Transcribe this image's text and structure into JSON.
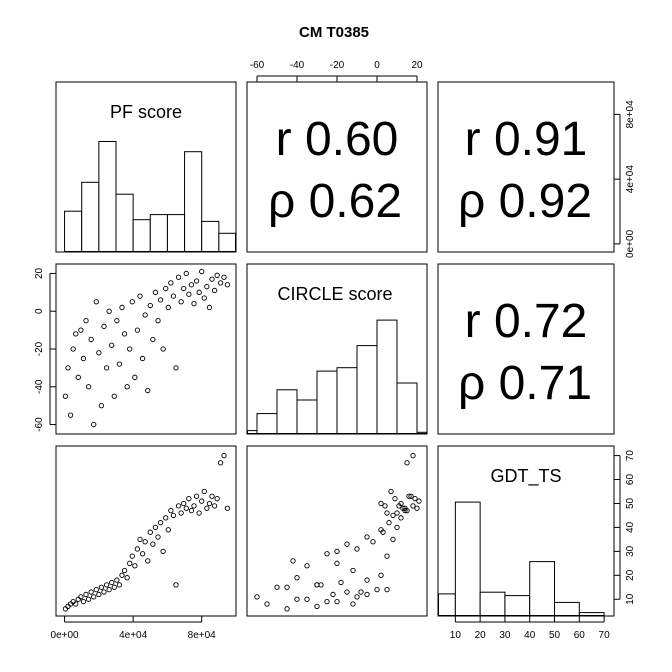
{
  "title": "CM T0385",
  "variables": [
    "PF score",
    "CIRCLE score",
    "GDT_TS"
  ],
  "correlations": {
    "pf_circle": {
      "r": "r 0.60",
      "rho": "ρ 0.62"
    },
    "pf_gdt": {
      "r": "r 0.91",
      "rho": "ρ 0.92"
    },
    "circle_gdt": {
      "r": "r 0.72",
      "rho": "ρ 0.71"
    }
  },
  "axes": {
    "top_ticks": [
      "-60",
      "-40",
      "-20",
      "0",
      "20"
    ],
    "right_ticks_pf": [
      "0e+00",
      "4e+04",
      "8e+04"
    ],
    "left_ticks_circle": [
      "20",
      "0",
      "-20",
      "-40",
      "-60"
    ],
    "right_ticks_gdt": [
      "10",
      "20",
      "30",
      "40",
      "50",
      "60",
      "70"
    ],
    "bottom_ticks_pf": [
      "0e+00",
      "4e+04",
      "8e+04"
    ],
    "bottom_ticks_gdt": [
      "10",
      "20",
      "30",
      "40",
      "50",
      "60",
      "70"
    ]
  },
  "chart_data": {
    "type": "scatter",
    "title": "CM T0385",
    "layout": "pairs",
    "variables": [
      "PF score",
      "CIRCLE score",
      "GDT_TS"
    ],
    "ranges": {
      "PF score": [
        -5000,
        100000
      ],
      "CIRCLE score": [
        -65,
        25
      ],
      "GDT_TS": [
        3,
        74
      ]
    },
    "histograms": {
      "PF score": {
        "breaks": [
          0,
          10000,
          20000,
          30000,
          40000,
          50000,
          60000,
          70000,
          80000,
          90000,
          100000
        ],
        "relative_heights": [
          0.24,
          0.41,
          0.65,
          0.34,
          0.19,
          0.22,
          0.22,
          0.59,
          0.18,
          0.11
        ]
      },
      "CIRCLE score": {
        "breaks": [
          -70,
          -60,
          -50,
          -40,
          -30,
          -20,
          -10,
          0,
          10,
          20,
          25
        ],
        "relative_heights": [
          0.02,
          0.12,
          0.26,
          0.2,
          0.37,
          0.39,
          0.52,
          0.67,
          0.3,
          0.01
        ]
      },
      "GDT_TS": {
        "breaks": [
          0,
          10,
          20,
          30,
          40,
          50,
          60,
          70,
          80
        ],
        "relative_heights": [
          0.13,
          0.67,
          0.14,
          0.12,
          0.32,
          0.08,
          0.02,
          0.0
        ]
      }
    },
    "correlations": [
      {
        "x": "PF score",
        "y": "CIRCLE score",
        "r": 0.6,
        "rho": 0.62
      },
      {
        "x": "PF score",
        "y": "GDT_TS",
        "r": 0.91,
        "rho": 0.92
      },
      {
        "x": "CIRCLE score",
        "y": "GDT_TS",
        "r": 0.72,
        "rho": 0.71
      }
    ],
    "points": [
      {
        "pf": 500,
        "circle": -45,
        "gdt": 6
      },
      {
        "pf": 2000,
        "circle": -30,
        "gdt": 7
      },
      {
        "pf": 3500,
        "circle": -55,
        "gdt": 8
      },
      {
        "pf": 5000,
        "circle": -20,
        "gdt": 9
      },
      {
        "pf": 6500,
        "circle": -12,
        "gdt": 8
      },
      {
        "pf": 8000,
        "circle": -35,
        "gdt": 10
      },
      {
        "pf": 9500,
        "circle": -10,
        "gdt": 11
      },
      {
        "pf": 11000,
        "circle": -25,
        "gdt": 9
      },
      {
        "pf": 12500,
        "circle": -5,
        "gdt": 12
      },
      {
        "pf": 14000,
        "circle": -40,
        "gdt": 10
      },
      {
        "pf": 15500,
        "circle": -15,
        "gdt": 13
      },
      {
        "pf": 17000,
        "circle": -60,
        "gdt": 11
      },
      {
        "pf": 18500,
        "circle": 5,
        "gdt": 14
      },
      {
        "pf": 20000,
        "circle": -22,
        "gdt": 12
      },
      {
        "pf": 21500,
        "circle": -50,
        "gdt": 15
      },
      {
        "pf": 23000,
        "circle": -8,
        "gdt": 13
      },
      {
        "pf": 24500,
        "circle": -30,
        "gdt": 16
      },
      {
        "pf": 26000,
        "circle": 0,
        "gdt": 14
      },
      {
        "pf": 27500,
        "circle": -18,
        "gdt": 17
      },
      {
        "pf": 29000,
        "circle": -45,
        "gdt": 15
      },
      {
        "pf": 30500,
        "circle": -5,
        "gdt": 18
      },
      {
        "pf": 32000,
        "circle": -28,
        "gdt": 16
      },
      {
        "pf": 33500,
        "circle": 2,
        "gdt": 20
      },
      {
        "pf": 35000,
        "circle": -12,
        "gdt": 22
      },
      {
        "pf": 36500,
        "circle": -40,
        "gdt": 19
      },
      {
        "pf": 38000,
        "circle": -20,
        "gdt": 25
      },
      {
        "pf": 39500,
        "circle": 5,
        "gdt": 28
      },
      {
        "pf": 41000,
        "circle": -35,
        "gdt": 24
      },
      {
        "pf": 42500,
        "circle": -10,
        "gdt": 31
      },
      {
        "pf": 44000,
        "circle": 8,
        "gdt": 35
      },
      {
        "pf": 45500,
        "circle": -25,
        "gdt": 29
      },
      {
        "pf": 47000,
        "circle": -2,
        "gdt": 34
      },
      {
        "pf": 48500,
        "circle": -42,
        "gdt": 26
      },
      {
        "pf": 50000,
        "circle": 3,
        "gdt": 38
      },
      {
        "pf": 51500,
        "circle": -15,
        "gdt": 33
      },
      {
        "pf": 53000,
        "circle": 10,
        "gdt": 40
      },
      {
        "pf": 54500,
        "circle": -5,
        "gdt": 36
      },
      {
        "pf": 56000,
        "circle": 6,
        "gdt": 42
      },
      {
        "pf": 57500,
        "circle": -20,
        "gdt": 30
      },
      {
        "pf": 59000,
        "circle": 12,
        "gdt": 44
      },
      {
        "pf": 60500,
        "circle": 2,
        "gdt": 39
      },
      {
        "pf": 62000,
        "circle": 15,
        "gdt": 47
      },
      {
        "pf": 63500,
        "circle": 8,
        "gdt": 45
      },
      {
        "pf": 65000,
        "circle": -30,
        "gdt": 16
      },
      {
        "pf": 66500,
        "circle": 18,
        "gdt": 49
      },
      {
        "pf": 68000,
        "circle": 5,
        "gdt": 46
      },
      {
        "pf": 69500,
        "circle": 12,
        "gdt": 50
      },
      {
        "pf": 71000,
        "circle": 20,
        "gdt": 48
      },
      {
        "pf": 72500,
        "circle": 9,
        "gdt": 52
      },
      {
        "pf": 74000,
        "circle": 14,
        "gdt": 47
      },
      {
        "pf": 75500,
        "circle": 4,
        "gdt": 49
      },
      {
        "pf": 77000,
        "circle": 16,
        "gdt": 53
      },
      {
        "pf": 78500,
        "circle": 10,
        "gdt": 46
      },
      {
        "pf": 80000,
        "circle": 21,
        "gdt": 51
      },
      {
        "pf": 81500,
        "circle": 7,
        "gdt": 55
      },
      {
        "pf": 83000,
        "circle": 13,
        "gdt": 48
      },
      {
        "pf": 84500,
        "circle": 2,
        "gdt": 50
      },
      {
        "pf": 86000,
        "circle": 17,
        "gdt": 53
      },
      {
        "pf": 87500,
        "circle": 11,
        "gdt": 49
      },
      {
        "pf": 89000,
        "circle": 19,
        "gdt": 52
      },
      {
        "pf": 91000,
        "circle": 15,
        "gdt": 67
      },
      {
        "pf": 93000,
        "circle": 18,
        "gdt": 70
      },
      {
        "pf": 95000,
        "circle": 14,
        "gdt": 48
      }
    ]
  }
}
